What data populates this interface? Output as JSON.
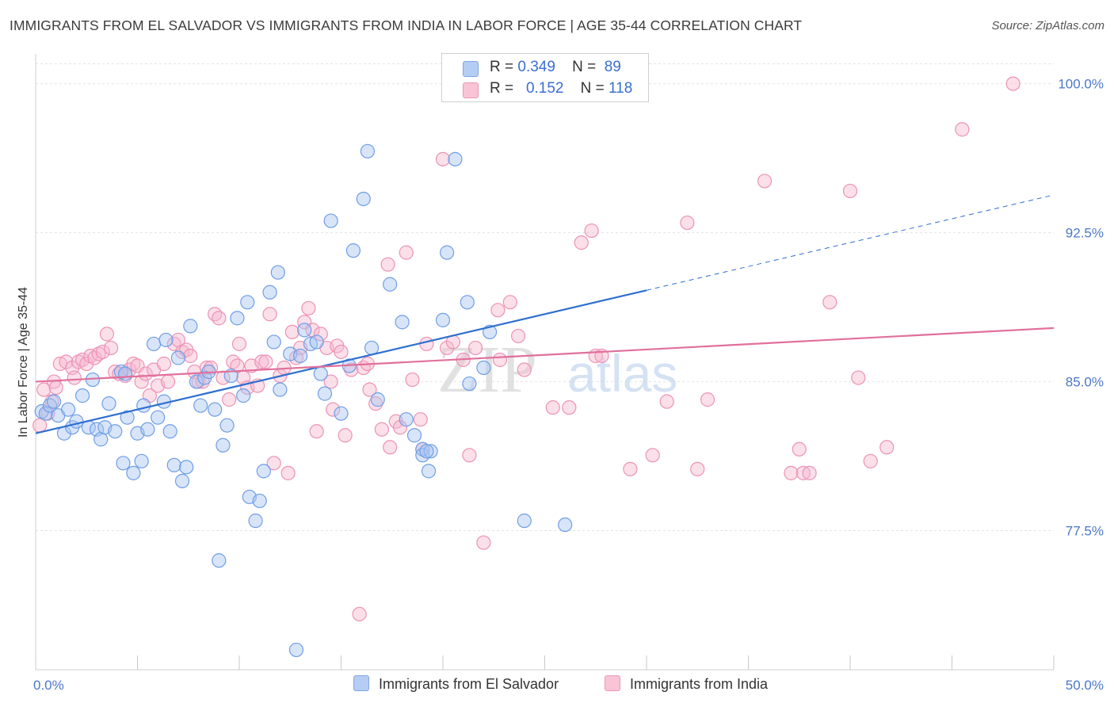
{
  "header": {
    "title": "IMMIGRANTS FROM EL SALVADOR VS IMMIGRANTS FROM INDIA IN LABOR FORCE | AGE 35-44 CORRELATION CHART",
    "source": "Source: ZipAtlas.com"
  },
  "watermark": {
    "zip": "ZIP",
    "atlas": "atlas"
  },
  "legend": {
    "r_label": "R =",
    "n_label": "N =",
    "rows": [
      {
        "r": "0.349",
        "n": "89"
      },
      {
        "r": "0.152",
        "n": "118"
      }
    ]
  },
  "chart_data": {
    "type": "scatter",
    "title": "IMMIGRANTS FROM EL SALVADOR VS IMMIGRANTS FROM INDIA IN LABOR FORCE | AGE 35-44 CORRELATION CHART",
    "xlabel": "",
    "ylabel": "In Labor Force | Age 35-44",
    "xlim": [
      0,
      50
    ],
    "ylim": [
      70.5,
      101.5
    ],
    "x_tick_labels": [
      "0.0%",
      "50.0%"
    ],
    "y_ticks": [
      77.5,
      85.0,
      92.5,
      100.0
    ],
    "y_tick_labels": [
      "77.5%",
      "85.0%",
      "92.5%",
      "100.0%"
    ],
    "grid": true,
    "legend_position": "top-center",
    "colors": {
      "el_salvador": "#6f9ee6",
      "india": "#f090b0",
      "blue_line": "#2f6fd0",
      "pink_line": "#e0709a"
    },
    "series": [
      {
        "name": "Immigrants from El Salvador",
        "r": 0.349,
        "n": 89,
        "trend": {
          "x": [
            0,
            30
          ],
          "y": [
            82.4,
            89.6
          ],
          "dashed_to": [
            50,
            94.4
          ]
        },
        "points": [
          [
            0.3,
            83.5
          ],
          [
            0.5,
            83.4
          ],
          [
            0.7,
            83.8
          ],
          [
            0.9,
            84.0
          ],
          [
            1.1,
            83.3
          ],
          [
            1.4,
            82.4
          ],
          [
            1.6,
            83.6
          ],
          [
            1.8,
            82.7
          ],
          [
            2.0,
            83.0
          ],
          [
            2.3,
            84.3
          ],
          [
            2.6,
            82.7
          ],
          [
            2.8,
            85.1
          ],
          [
            3.0,
            82.6
          ],
          [
            3.2,
            82.1
          ],
          [
            3.4,
            82.7
          ],
          [
            3.6,
            83.9
          ],
          [
            3.9,
            82.5
          ],
          [
            4.2,
            85.5
          ],
          [
            4.3,
            80.9
          ],
          [
            4.4,
            85.4
          ],
          [
            4.5,
            83.2
          ],
          [
            4.8,
            80.4
          ],
          [
            5.0,
            82.4
          ],
          [
            5.2,
            81.0
          ],
          [
            5.3,
            83.8
          ],
          [
            5.5,
            82.6
          ],
          [
            5.8,
            86.9
          ],
          [
            6.0,
            83.2
          ],
          [
            6.3,
            84.0
          ],
          [
            6.4,
            87.1
          ],
          [
            6.6,
            82.5
          ],
          [
            6.8,
            80.8
          ],
          [
            7.0,
            86.2
          ],
          [
            7.2,
            80.0
          ],
          [
            7.4,
            80.7
          ],
          [
            7.6,
            87.8
          ],
          [
            7.9,
            85.0
          ],
          [
            8.1,
            83.8
          ],
          [
            8.3,
            85.2
          ],
          [
            8.5,
            85.5
          ],
          [
            8.8,
            83.6
          ],
          [
            9.0,
            76.0
          ],
          [
            9.2,
            81.8
          ],
          [
            9.4,
            82.8
          ],
          [
            9.6,
            85.3
          ],
          [
            9.9,
            88.2
          ],
          [
            10.2,
            84.3
          ],
          [
            10.4,
            89.0
          ],
          [
            10.5,
            79.2
          ],
          [
            10.8,
            78.0
          ],
          [
            11.0,
            79.0
          ],
          [
            11.2,
            80.5
          ],
          [
            11.5,
            89.5
          ],
          [
            11.7,
            87.0
          ],
          [
            11.9,
            90.5
          ],
          [
            12.0,
            84.6
          ],
          [
            12.5,
            86.4
          ],
          [
            12.8,
            71.5
          ],
          [
            13.0,
            86.3
          ],
          [
            13.2,
            87.6
          ],
          [
            13.5,
            86.9
          ],
          [
            13.8,
            87.0
          ],
          [
            14.0,
            85.4
          ],
          [
            14.2,
            84.4
          ],
          [
            14.5,
            93.1
          ],
          [
            15.0,
            83.4
          ],
          [
            15.4,
            85.8
          ],
          [
            15.6,
            91.6
          ],
          [
            16.1,
            94.2
          ],
          [
            16.3,
            96.6
          ],
          [
            16.5,
            86.7
          ],
          [
            16.8,
            84.1
          ],
          [
            17.4,
            89.9
          ],
          [
            18.0,
            88.0
          ],
          [
            18.2,
            83.1
          ],
          [
            18.6,
            82.3
          ],
          [
            19.0,
            81.6
          ],
          [
            19.3,
            80.5
          ],
          [
            19.0,
            81.3
          ],
          [
            19.4,
            81.5
          ],
          [
            19.2,
            81.5
          ],
          [
            20.0,
            88.1
          ],
          [
            20.2,
            91.5
          ],
          [
            20.6,
            96.2
          ],
          [
            21.2,
            89.0
          ],
          [
            21.3,
            84.9
          ],
          [
            22.0,
            85.7
          ],
          [
            22.3,
            87.5
          ],
          [
            24.0,
            78.0
          ],
          [
            26.0,
            77.8
          ]
        ]
      },
      {
        "name": "Immigrants from India",
        "r": 0.152,
        "n": 118,
        "trend": {
          "x": [
            0,
            50
          ],
          "y": [
            85.0,
            87.7
          ]
        },
        "points": [
          [
            0.2,
            82.8
          ],
          [
            0.4,
            84.6
          ],
          [
            0.6,
            83.4
          ],
          [
            0.8,
            84.0
          ],
          [
            0.9,
            85.0
          ],
          [
            1.0,
            84.7
          ],
          [
            1.2,
            85.9
          ],
          [
            1.5,
            86.0
          ],
          [
            1.8,
            85.7
          ],
          [
            1.9,
            85.2
          ],
          [
            2.1,
            86.0
          ],
          [
            2.3,
            86.1
          ],
          [
            2.5,
            85.9
          ],
          [
            2.7,
            86.3
          ],
          [
            2.9,
            86.2
          ],
          [
            3.1,
            86.4
          ],
          [
            3.3,
            86.5
          ],
          [
            3.5,
            87.4
          ],
          [
            3.7,
            86.7
          ],
          [
            3.9,
            85.5
          ],
          [
            4.1,
            85.4
          ],
          [
            4.4,
            85.3
          ],
          [
            4.6,
            85.6
          ],
          [
            4.8,
            85.9
          ],
          [
            5.0,
            85.8
          ],
          [
            5.2,
            85.0
          ],
          [
            5.4,
            85.4
          ],
          [
            5.6,
            84.3
          ],
          [
            5.8,
            85.6
          ],
          [
            6.0,
            84.8
          ],
          [
            6.3,
            85.9
          ],
          [
            6.5,
            85.0
          ],
          [
            6.8,
            86.9
          ],
          [
            7.0,
            87.1
          ],
          [
            7.2,
            86.5
          ],
          [
            7.4,
            86.6
          ],
          [
            7.6,
            86.3
          ],
          [
            7.8,
            85.5
          ],
          [
            8.0,
            85.0
          ],
          [
            8.2,
            85.0
          ],
          [
            8.4,
            85.7
          ],
          [
            8.6,
            85.7
          ],
          [
            8.8,
            88.4
          ],
          [
            9.0,
            88.2
          ],
          [
            9.2,
            85.2
          ],
          [
            9.5,
            84.1
          ],
          [
            9.7,
            86.0
          ],
          [
            9.9,
            85.8
          ],
          [
            10.0,
            86.9
          ],
          [
            10.2,
            85.2
          ],
          [
            10.4,
            84.7
          ],
          [
            10.6,
            85.8
          ],
          [
            10.9,
            84.8
          ],
          [
            11.1,
            86.0
          ],
          [
            11.3,
            86.0
          ],
          [
            11.5,
            88.4
          ],
          [
            11.7,
            80.9
          ],
          [
            12.0,
            85.3
          ],
          [
            12.2,
            85.7
          ],
          [
            12.4,
            80.4
          ],
          [
            12.6,
            87.5
          ],
          [
            12.8,
            86.2
          ],
          [
            13.0,
            86.7
          ],
          [
            13.2,
            88.0
          ],
          [
            13.4,
            88.7
          ],
          [
            13.6,
            87.6
          ],
          [
            13.8,
            82.5
          ],
          [
            14.0,
            87.4
          ],
          [
            14.3,
            86.7
          ],
          [
            14.5,
            85.0
          ],
          [
            14.6,
            83.6
          ],
          [
            14.8,
            86.8
          ],
          [
            15.0,
            86.5
          ],
          [
            15.2,
            82.3
          ],
          [
            15.5,
            85.6
          ],
          [
            15.9,
            73.3
          ],
          [
            16.1,
            85.7
          ],
          [
            16.3,
            85.9
          ],
          [
            16.4,
            84.6
          ],
          [
            16.7,
            83.9
          ],
          [
            17.0,
            82.6
          ],
          [
            17.3,
            90.9
          ],
          [
            17.4,
            81.7
          ],
          [
            17.7,
            83.0
          ],
          [
            17.9,
            82.7
          ],
          [
            18.2,
            91.5
          ],
          [
            18.5,
            85.1
          ],
          [
            18.9,
            83.1
          ],
          [
            19.0,
            81.6
          ],
          [
            19.2,
            86.9
          ],
          [
            20.0,
            96.2
          ],
          [
            20.2,
            86.7
          ],
          [
            20.5,
            87.0
          ],
          [
            21.0,
            86.1
          ],
          [
            21.3,
            81.3
          ],
          [
            21.6,
            86.7
          ],
          [
            22.0,
            76.9
          ],
          [
            22.7,
            88.6
          ],
          [
            22.8,
            86.1
          ],
          [
            23.3,
            89.0
          ],
          [
            23.7,
            87.3
          ],
          [
            24.0,
            85.6
          ],
          [
            25.4,
            83.7
          ],
          [
            26.2,
            83.7
          ],
          [
            26.8,
            92.0
          ],
          [
            27.3,
            92.6
          ],
          [
            27.5,
            86.3
          ],
          [
            27.8,
            86.3
          ],
          [
            29.2,
            80.6
          ],
          [
            30.3,
            81.3
          ],
          [
            31.0,
            84.0
          ],
          [
            32.0,
            93.0
          ],
          [
            32.5,
            80.6
          ],
          [
            33.0,
            84.1
          ],
          [
            35.8,
            95.1
          ],
          [
            37.1,
            80.4
          ],
          [
            37.5,
            81.6
          ],
          [
            37.7,
            80.4
          ],
          [
            38.0,
            80.4
          ],
          [
            39.0,
            89.0
          ],
          [
            40.0,
            94.6
          ],
          [
            40.4,
            85.2
          ],
          [
            41.0,
            81.0
          ],
          [
            41.8,
            81.7
          ],
          [
            45.5,
            97.7
          ],
          [
            48.0,
            100.0
          ]
        ]
      }
    ]
  },
  "bottom_legend": {
    "items": [
      "Immigrants from El Salvador",
      "Immigrants from India"
    ]
  }
}
